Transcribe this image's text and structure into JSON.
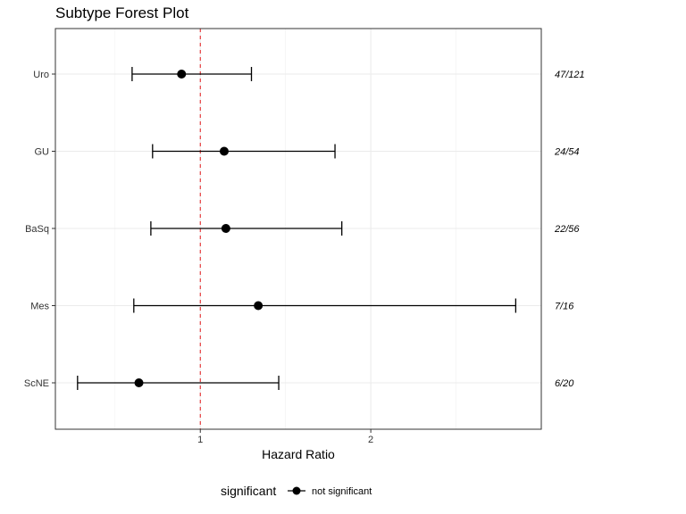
{
  "chart_data": {
    "type": "scatter",
    "title": "Subtype Forest Plot",
    "xlabel": "Hazard Ratio",
    "ylabel": "",
    "xlim": [
      0.15,
      3.0
    ],
    "x_ticks": [
      1,
      2
    ],
    "x_tick_labels": [
      "1",
      "2"
    ],
    "x_minor_gridlines": [
      0.5,
      1.5,
      2.5
    ],
    "reference_line": {
      "x": 1,
      "color": "#e41a1c",
      "style": "dashed"
    },
    "grid": true,
    "legend": {
      "title": "significant",
      "entries": [
        "not significant"
      ],
      "position": "bottom"
    },
    "point_color": "#000000",
    "rows": [
      {
        "label": "Uro",
        "hr": 0.89,
        "lower": 0.6,
        "upper": 1.3,
        "count": "47/121"
      },
      {
        "label": "GU",
        "hr": 1.14,
        "lower": 0.72,
        "upper": 1.79,
        "count": "24/54"
      },
      {
        "label": "BaSq",
        "hr": 1.15,
        "lower": 0.71,
        "upper": 1.83,
        "count": "22/56"
      },
      {
        "label": "Mes",
        "hr": 1.34,
        "lower": 0.61,
        "upper": 2.85,
        "count": "7/16"
      },
      {
        "label": "ScNE",
        "hr": 0.64,
        "lower": 0.28,
        "upper": 1.46,
        "count": "6/20"
      }
    ]
  }
}
